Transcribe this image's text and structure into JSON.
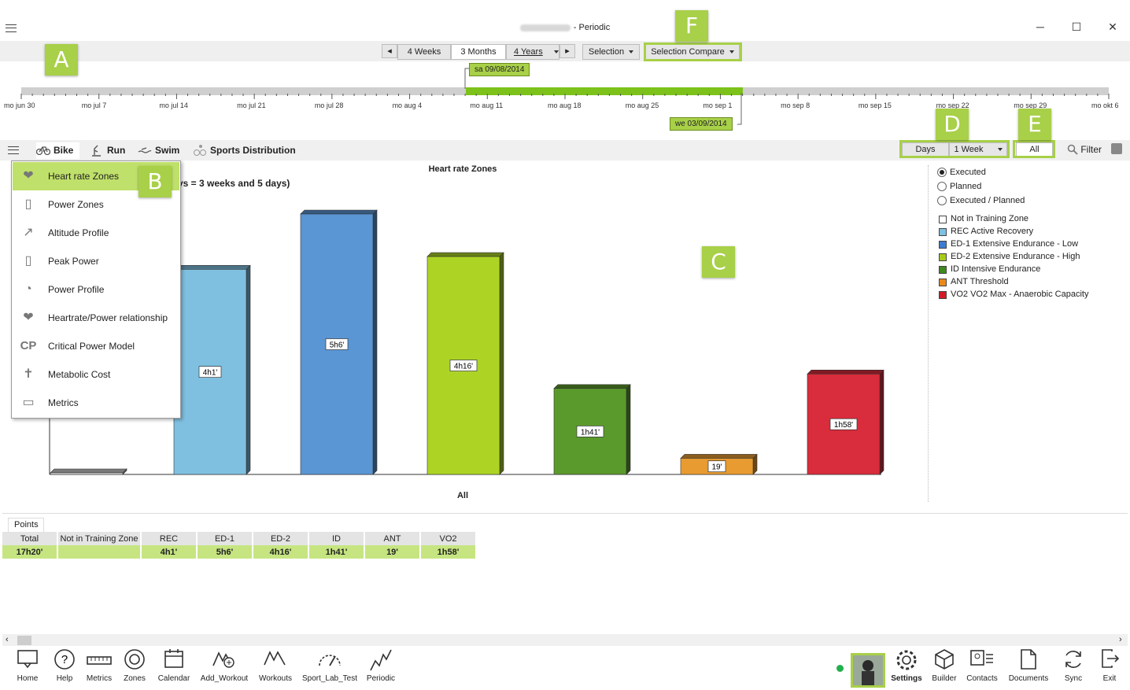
{
  "window": {
    "title_suffix": "- Periodic",
    "minimize": "─",
    "maximize": "☐",
    "close": "✕"
  },
  "period_bar": {
    "prev": "◂",
    "next": "▸",
    "ranges": [
      "4 Weeks",
      "3 Months",
      "4 Years"
    ],
    "selected_range": "3 Months",
    "selection": "Selection",
    "selection_compare": "Selection Compare"
  },
  "badges": {
    "A": "A",
    "B": "B",
    "C": "C",
    "D": "D",
    "E": "E",
    "F": "F"
  },
  "timeline": {
    "labels": [
      "mo jun 30",
      "mo jul 7",
      "mo jul 14",
      "mo jul 21",
      "mo jul 28",
      "mo aug 4",
      "mo aug 11",
      "mo aug 18",
      "mo aug 25",
      "mo sep 1",
      "mo sep 8",
      "mo sep 15",
      "mo sep 22",
      "mo sep 29",
      "mo okt 6"
    ],
    "start_tip": "sa 09/08/2014",
    "end_tip": "we 03/09/2014"
  },
  "sports": {
    "bike": "Bike",
    "run": "Run",
    "swim": "Swim",
    "distribution": "Sports Distribution"
  },
  "controls": {
    "days": "Days",
    "week": "1 Week",
    "all": "All",
    "filter": "Filter"
  },
  "menu": {
    "items": [
      "Heart rate Zones",
      "Power Zones",
      "Altitude Profile",
      "Peak Power",
      "Power Profile",
      "Heartrate/Power relationship",
      "Critical Power Model",
      "Metabolic Cost",
      "Metrics"
    ],
    "icons": [
      "heart-icon",
      "power-zones-icon",
      "altitude-icon",
      "peak-power-icon",
      "power-profile-icon",
      "heartrate-power-icon",
      "cp-icon",
      "person-icon",
      "ruler-icon"
    ]
  },
  "chart_data": {
    "type": "bar",
    "title": "Heart rate Zones",
    "subtitle_fragment": "ys = 3 weeks and 5 days)",
    "xlabel": "All",
    "categories": [
      "Not in Training Zone",
      "REC",
      "ED-1",
      "ED-2",
      "ID",
      "ANT",
      "VO2"
    ],
    "values_minutes": [
      0,
      241,
      306,
      256,
      101,
      19,
      118
    ],
    "data_labels": [
      "",
      "4h1'",
      "5h6'",
      "4h16'",
      "1h41'",
      "19'",
      "1h58'"
    ],
    "colors": [
      "#ffffff",
      "#7fc0e0",
      "#5a96d4",
      "#add425",
      "#5a9a2c",
      "#e89b30",
      "#d92c3c"
    ],
    "ylim": [
      0,
      306
    ]
  },
  "legend": {
    "radios": [
      {
        "label": "Executed",
        "checked": true
      },
      {
        "label": "Planned",
        "checked": false
      },
      {
        "label": "Executed / Planned",
        "checked": false
      }
    ],
    "items": [
      {
        "label": "Not in Training Zone",
        "color": "#ffffff"
      },
      {
        "label": "REC Active Recovery",
        "color": "#7fc0e0"
      },
      {
        "label": "ED-1 Extensive Endurance - Low",
        "color": "#3c7dd0"
      },
      {
        "label": "ED-2 Extensive Endurance - High",
        "color": "#a6cc1a"
      },
      {
        "label": "ID Intensive Endurance",
        "color": "#3f8a1e"
      },
      {
        "label": "ANT Threshold",
        "color": "#e88a1a"
      },
      {
        "label": "VO2 VO2 Max - Anaerobic Capacity",
        "color": "#d31b28"
      }
    ]
  },
  "points": {
    "tab": "Points",
    "headers": [
      "Total",
      "Not in Training Zone",
      "REC",
      "ED-1",
      "ED-2",
      "ID",
      "ANT",
      "VO2"
    ],
    "values": [
      "17h20'",
      "",
      "4h1'",
      "5h6'",
      "4h16'",
      "1h41'",
      "19'",
      "1h58'"
    ]
  },
  "nav": {
    "left": [
      "Home",
      "Help",
      "Metrics",
      "Zones",
      "Calendar",
      "Add_Workout",
      "Workouts",
      "Sport_Lab_Test",
      "Periodic"
    ],
    "right": [
      "Settings",
      "Builder",
      "Contacts",
      "Documents",
      "Sync",
      "Exit"
    ]
  }
}
